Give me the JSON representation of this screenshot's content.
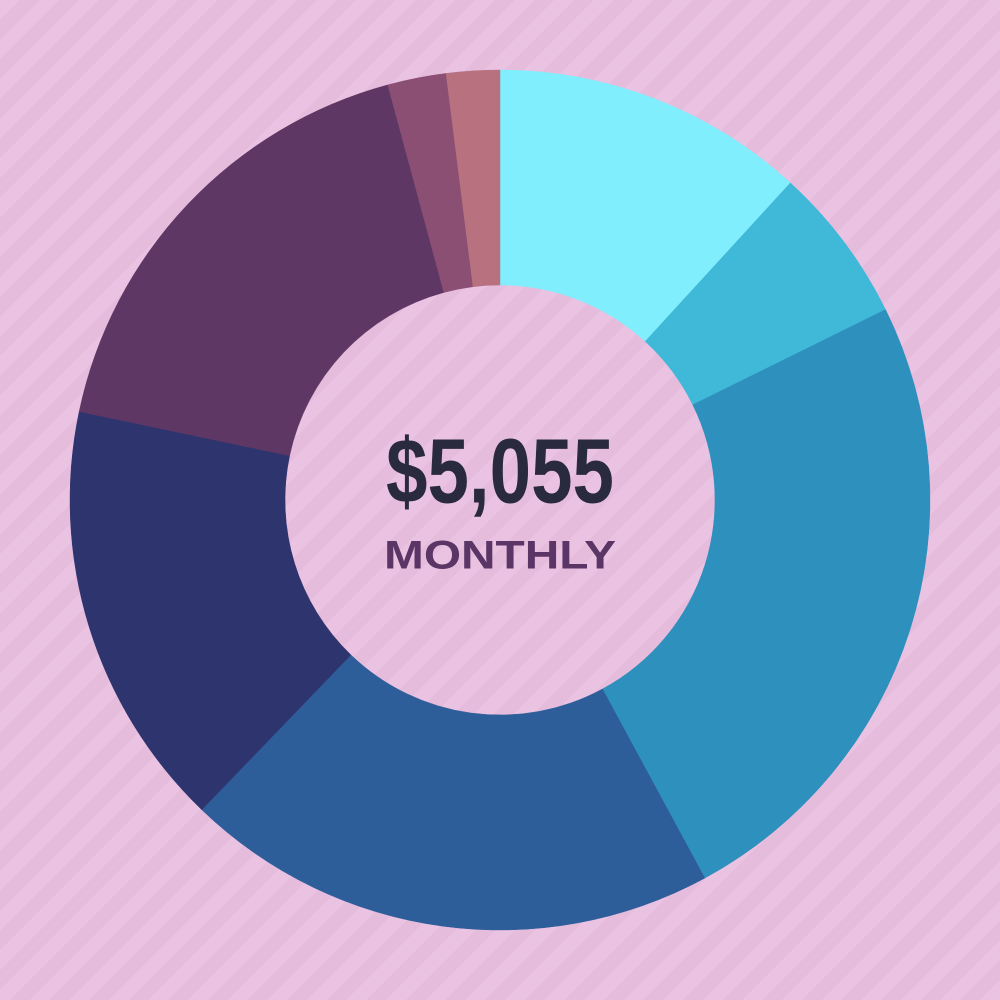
{
  "chart_data": {
    "type": "donut",
    "values": [
      11.8,
      5.9,
      24.4,
      20.1,
      16.1,
      17.5,
      2.2,
      2.0
    ],
    "colors": [
      "#80eefc",
      "#40b8d8",
      "#2e90bc",
      "#2d5e9a",
      "#2e346e",
      "#5e3764",
      "#8a4f72",
      "#b8727f"
    ],
    "center_label": "$5,055",
    "center_sublabel": "MONTHLY"
  }
}
